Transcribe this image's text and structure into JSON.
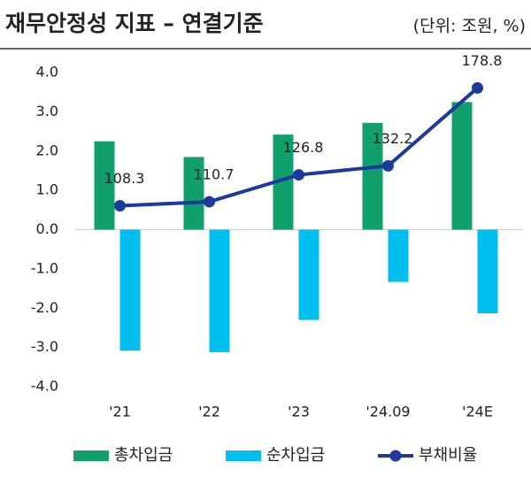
{
  "chart_data": {
    "type": "bar_line",
    "title": "재무안정성 지표 – 연결기준",
    "unit": "(단위: 조원, %)",
    "categories": [
      "'21",
      "'22",
      "'23",
      "'24.09",
      "'24E"
    ],
    "series": [
      {
        "name": "총차입금",
        "color": "#11a06b",
        "type": "bar",
        "values": [
          2.25,
          1.85,
          2.42,
          2.72,
          3.25
        ]
      },
      {
        "name": "순차입금",
        "color": "#00bfef",
        "type": "bar",
        "values": [
          -3.08,
          -3.12,
          -2.3,
          -1.33,
          -2.13
        ]
      },
      {
        "name": "부채비율",
        "color": "#1a3a9c",
        "type": "line",
        "axis": "y2",
        "values": [
          108.3,
          110.7,
          126.8,
          132.2,
          178.8
        ]
      }
    ],
    "ylim": [
      -4,
      4
    ],
    "yticks": [
      {
        "value": 4,
        "label": "4.0"
      },
      {
        "value": 3,
        "label": "3.0"
      },
      {
        "value": 2,
        "label": "2.0"
      },
      {
        "value": 1,
        "label": "1.0"
      },
      {
        "value": 0,
        "label": "0.0"
      },
      {
        "value": -1,
        "label": "-1.0"
      },
      {
        "value": -2,
        "label": "-2.0"
      },
      {
        "value": -3,
        "label": "-3.0"
      },
      {
        "value": -4,
        "label": "-4.0"
      }
    ],
    "y2lim": [
      0,
      188
    ]
  }
}
